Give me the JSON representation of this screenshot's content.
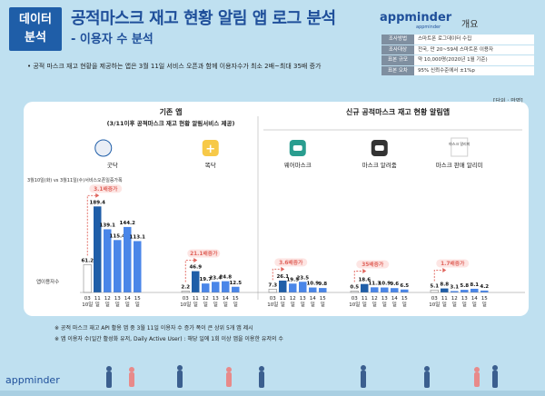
{
  "header": {
    "badge_line1": "데이터",
    "badge_line2": "분석",
    "title": "공적마스크 재고 현황 알림 앱 로그 분석",
    "subtitle": "- 이용자 수 분석",
    "logo": "appminder",
    "logo_sub": "appminder",
    "overview_label": "개요"
  },
  "info_table": [
    {
      "key": "조사방법",
      "value": "스마트폰 로그데이터 수집"
    },
    {
      "key": "조사대상",
      "value": "전국, 만 20~59세 스마트폰 이용자"
    },
    {
      "key": "표본 규모",
      "value": "약 10,000명(2020년 1월 기준)"
    },
    {
      "key": "표본 오차",
      "value": "95% 신뢰수준에서 ±1%p"
    }
  ],
  "bullet": "•  공적 마스크 재고 현황을 제공하는 앱은 3월 11일 서비스 오픈과 함께 이용자수가 최소 2배~최대 35배 증가",
  "unit": "[단위 : 만명]",
  "notes": [
    "※ 공적 마스크 재고 API 활용 앱 중 3월 11일 이용자 수 증가 폭이 큰 상위 5개 앱 제시",
    "※ 앱 이용자 수(일간 활성화 유저, Daily Active User) : 해당 일에 1회 이상 앱을 이용한 유저의 수"
  ],
  "footer_logo": "appminder",
  "chart_data": {
    "type": "bar",
    "group_titles": [
      {
        "title": "기존 앱",
        "subtitle": "(3/11이후 공적마스크 재고 현황 알림서비스 제공)"
      },
      {
        "title": "신규 공적마스크 재고 현황 알림앱",
        "subtitle": ""
      }
    ],
    "axis_labels": {
      "left_top": "3월10일(화) vs 3월11일(수)서비스오픈일증가폭",
      "left_bottom": "앱이용자수"
    },
    "accent": "#1f5ea8",
    "bar_color": "#4a86e8",
    "ref_color": "#ffffff",
    "ylim": [
      0,
      200
    ],
    "series": [
      {
        "name": "굿닥",
        "group": 0,
        "icon": "doctor-icon",
        "growth": "3.1배증가",
        "categories": [
          "03 10일",
          "11 일",
          "12 일",
          "13 일",
          "14 일",
          "15 일"
        ],
        "values": [
          61.2,
          189.4,
          139.1,
          115.4,
          144.2,
          113.1
        ]
      },
      {
        "name": "똑닥",
        "group": 0,
        "icon": "plus-icon",
        "growth": "21.1배증가",
        "categories": [
          "03 10일",
          "11 일",
          "12 일",
          "13 일",
          "14 일",
          "15 일"
        ],
        "values": [
          2.2,
          46.9,
          19.7,
          23.4,
          24.8,
          12.5
        ]
      },
      {
        "name": "웨어마스크",
        "group": 1,
        "icon": "mask-icon",
        "growth": "3.6배증가",
        "categories": [
          "03 10일",
          "11 일",
          "12 일",
          "13 일",
          "14 일",
          "15 일"
        ],
        "values": [
          7.3,
          26.1,
          19.5,
          23.5,
          10.9,
          9.8
        ]
      },
      {
        "name": "마스크 알려줌",
        "group": 1,
        "icon": "mask-icon",
        "growth": "35배증가",
        "categories": [
          "03 10일",
          "11 일",
          "12 일",
          "13 일",
          "14 일",
          "15 일"
        ],
        "values": [
          0.5,
          18.6,
          11.3,
          10.9,
          9.6,
          6.5
        ]
      },
      {
        "name": "마스크 판매 알리미",
        "group": 1,
        "icon": "mask-box-icon",
        "icon_text": "마스크 알리미",
        "growth": "1.7배증가",
        "categories": [
          "03 10일",
          "11 일",
          "12 일",
          "13 일",
          "14 일",
          "15 일"
        ],
        "values": [
          5.1,
          8.8,
          3.1,
          5.8,
          8.1,
          4.2
        ]
      }
    ]
  }
}
